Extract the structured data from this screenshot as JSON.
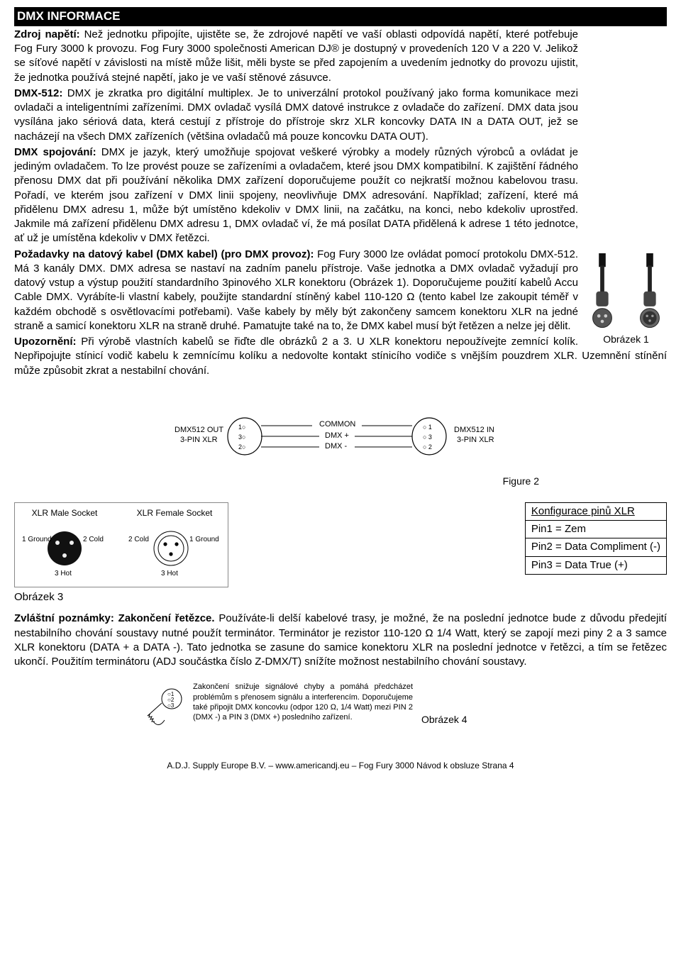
{
  "header": "DMX INFORMACE",
  "bodyHtml": "<p><span class=\"b\">Zdroj napětí:</span> Než jednotku připojíte, ujistěte se, že zdrojové napětí ve vaší oblasti odpovídá napětí, které potřebuje Fog Fury 3000 k provozu. Fog Fury 3000 společnosti American DJ® je dostupný v provedeních 120 V a 220 V. Jelikož se síťové napětí v závislosti na místě může lišit, měli byste se před zapojením a uvedením jednotky do provozu ujistit, že jednotka používá stejné napětí, jako je ve vaší stěnové zásuvce.</p><p><span class=\"b\">DMX-512:</span> DMX je zkratka pro digitální multiplex. Je to univerzální protokol používaný jako forma komunikace mezi ovladači a inteligentními zařízeními. DMX ovladač vysílá DMX datové instrukce z ovladače do zařízení. DMX data jsou vysílána jako sériová data, která cestují z přístroje do přístroje skrz XLR koncovky DATA IN a DATA OUT, jež se nacházejí na všech DMX zařízeních (většina ovladačů má pouze koncovku DATA OUT).</p><p><span class=\"b\">DMX spojování:</span> DMX je jazyk, který umožňuje spojovat veškeré výrobky a modely různých výrobců a ovládat je jediným ovladačem. To lze provést pouze se zařízeními a ovladačem, které jsou DMX kompatibilní. K zajištění řádného přenosu DMX dat při používání několika DMX zařízení doporučujeme použít co nejkratší možnou kabelovou trasu. Pořadí, ve kterém jsou zařízení v DMX linii spojeny, neovlivňuje DMX adresování. Například; zařízení, které má přidělenu DMX adresu 1, může být umístěno kdekoliv v DMX linii, na začátku, na konci, nebo kdekoliv uprostřed. Jakmile má zařízení přidělenu DMX adresu 1, DMX ovladač ví, že má posílat DATA přidělená k adrese 1 této jednotce, ať už je umístěna kdekoliv v DMX řetězci.</p><p><span class=\"b\">Požadavky na datový kabel (DMX kabel) (pro DMX provoz):</span> Fog Fury 3000 lze ovládat pomocí protokolu DMX-512. Má 3 kanály DMX. DMX adresa se nastaví na zadním panelu přístroje. Vaše jednotka a DMX ovladač vyžadují pro datový vstup a výstup použití standardního 3pinového XLR konektoru (Obrázek 1). Doporučujeme použití kabelů Accu Cable DMX. Vyrábíte-li vlastní kabely, použijte standardní stíněný kabel 110-120 Ω (tento kabel lze zakoupit téměř v každém obchodě s osvětlovacími potřebami). Vaše kabely by měly být zakončeny samcem konektoru XLR na jedné straně a samicí konektoru XLR na straně druhé. Pamatujte také na to, že DMX kabel musí být řetězen a nelze jej dělit.</p><p><span class=\"b\">Upozornění:</span> Při výrobě vlastních kabelů se řiďte dle obrázků 2 a 3. U XLR konektoru nepoužívejte zemnící kolík. Nepřipojujte stínicí vodič kabelu k zemnícímu kolíku a nedovolte kontakt stínicího vodiče s vnějším pouzdrem XLR. Uzemnění stínění může způsobit zkrat a nestabilní chování.</p>",
  "fig1": {
    "caption": "Obrázek 1"
  },
  "fig2": {
    "labels": {
      "common": "COMMON",
      "dmxPlus": "DMX +",
      "dmxMinus": "DMX -",
      "out": "DMX512 OUT",
      "outSub": "3-PIN XLR",
      "in": "DMX512 IN",
      "inSub": "3-PIN XLR"
    },
    "caption": "Figure 2"
  },
  "fig3": {
    "male": {
      "title": "XLR Male Socket",
      "ground": "1 Ground",
      "cold": "2 Cold",
      "hot": "3 Hot"
    },
    "female": {
      "title": "XLR Female Socket",
      "ground": "1 Ground",
      "cold": "2 Cold",
      "hot": "3 Hot"
    },
    "caption": "Obrázek 3"
  },
  "pinTable": {
    "header": "Konfigurace pinů XLR",
    "rows": [
      "Pin1 = Zem",
      "Pin2 = Data Compliment (-)",
      "Pin3 = Data True (+)"
    ]
  },
  "notesHeader": "Zvláštní poznámky: Zakončení řetězce.",
  "notesBody": " Používáte-li delší kabelové trasy, je možné, že na poslední jednotce bude z důvodu předejití nestabilního chování soustavy nutné použít terminátor. Terminátor je rezistor 110-120 Ω 1/4 Watt, který se zapojí mezi piny 2 a 3 samce XLR konektoru (DATA + a DATA -). Tato jednotka se zasune do samice konektoru XLR na poslední jednotce v řetězci, a tím se řetězec ukončí. Použitím terminátoru (ADJ součástka číslo Z-DMX/T) snížíte možnost nestabilního chování soustavy.",
  "terminator": {
    "text": "Zakončení snižuje signálové chyby a pomáhá předcházet problémům s přenosem signálu a interferencím.\nDoporučujeme také připojit DMX koncovku (odpor 120 Ω, 1/4 Watt) mezi PIN 2 (DMX -) a PIN 3 (DMX +) posledního zařízení.",
    "caption": "Obrázek 4"
  },
  "footer": "A.D.J. Supply Europe B.V. – www.americandj.eu – Fog Fury 3000  Návod k obsluze Strana 4"
}
